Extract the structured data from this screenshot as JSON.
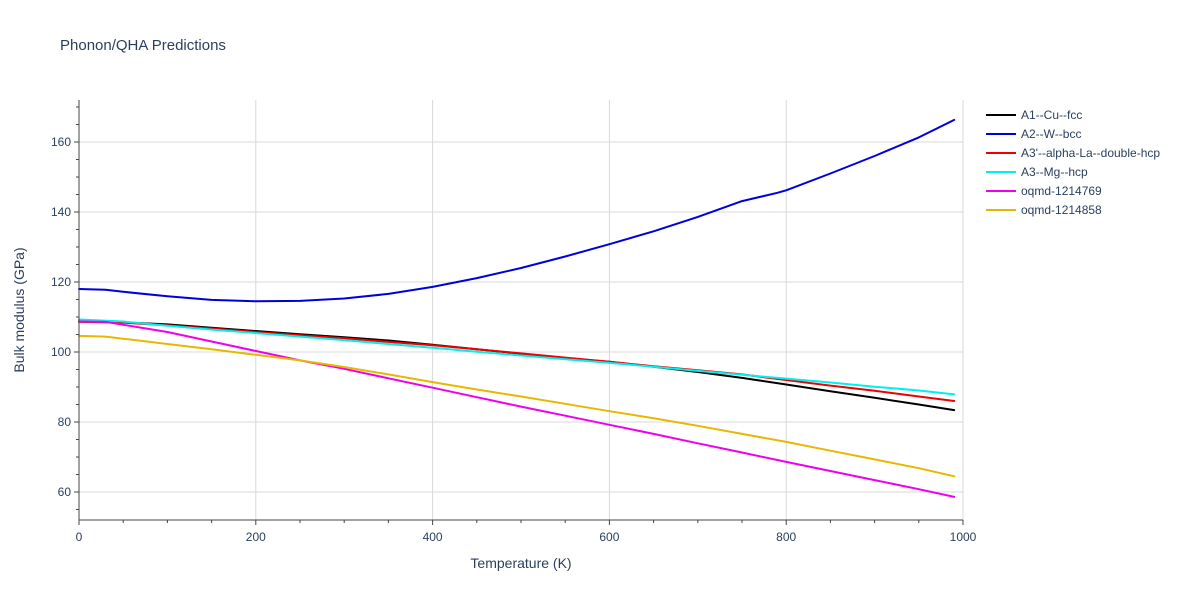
{
  "chart_data": {
    "type": "line",
    "title": "Phonon/QHA Predictions",
    "xlabel": "Temperature (K)",
    "ylabel": "Bulk modulus (GPa)",
    "xlim": [
      0,
      1000
    ],
    "ylim": [
      52,
      172
    ],
    "xticks": [
      0,
      200,
      400,
      600,
      800,
      1000
    ],
    "yticks": [
      60,
      80,
      100,
      120,
      140,
      160
    ],
    "grid": true,
    "legend_position": "right",
    "series": [
      {
        "name": "A1--Cu--fcc",
        "color": "#000000",
        "x": [
          0,
          50,
          100,
          150,
          200,
          250,
          300,
          350,
          400,
          450,
          500,
          550,
          600,
          650,
          700,
          750,
          800,
          850,
          900,
          950,
          990
        ],
        "y": [
          108.8,
          108.5,
          107.9,
          106.9,
          106.0,
          105.1,
          104.2,
          103.3,
          102.1,
          100.8,
          99.5,
          98.2,
          97.2,
          95.8,
          94.3,
          92.6,
          90.7,
          88.8,
          86.9,
          85.0,
          83.4
        ]
      },
      {
        "name": "A2--W--bcc",
        "color": "#0000dd",
        "x": [
          0,
          30,
          50,
          100,
          150,
          200,
          250,
          300,
          350,
          400,
          450,
          500,
          550,
          600,
          650,
          700,
          750,
          790,
          800,
          850,
          900,
          950,
          990
        ],
        "y": [
          118.0,
          117.8,
          117.2,
          115.9,
          114.9,
          114.5,
          114.6,
          115.3,
          116.6,
          118.6,
          121.1,
          124.0,
          127.3,
          130.8,
          134.5,
          138.6,
          143.1,
          145.5,
          146.2,
          151.0,
          156.0,
          161.3,
          166.3
        ]
      },
      {
        "name": "A3'--alpha-La--double-hcp",
        "color": "#ee0000",
        "x": [
          0,
          50,
          100,
          150,
          200,
          250,
          300,
          350,
          400,
          450,
          500,
          550,
          600,
          650,
          700,
          750,
          800,
          850,
          900,
          950,
          990
        ],
        "y": [
          108.6,
          108.4,
          107.6,
          106.7,
          105.7,
          104.8,
          103.9,
          102.9,
          101.9,
          100.8,
          99.6,
          98.4,
          97.2,
          95.9,
          94.8,
          93.6,
          92.0,
          90.4,
          88.9,
          87.3,
          86.0
        ]
      },
      {
        "name": "A3--Mg--hcp",
        "color": "#00f0f0",
        "x": [
          0,
          50,
          100,
          150,
          200,
          250,
          300,
          350,
          400,
          450,
          500,
          550,
          600,
          650,
          700,
          750,
          800,
          850,
          900,
          950,
          990
        ],
        "y": [
          109.3,
          108.7,
          107.5,
          106.4,
          105.4,
          104.4,
          103.4,
          102.3,
          101.2,
          100.1,
          99.0,
          97.9,
          96.9,
          95.8,
          94.6,
          93.5,
          92.4,
          91.3,
          90.1,
          89.0,
          87.9
        ]
      },
      {
        "name": "oqmd-1214769",
        "color": "#ee00ee",
        "x": [
          0,
          30,
          50,
          100,
          150,
          200,
          250,
          300,
          350,
          400,
          450,
          500,
          550,
          600,
          650,
          700,
          750,
          800,
          850,
          900,
          950,
          990
        ],
        "y": [
          108.7,
          108.6,
          107.8,
          105.7,
          103.0,
          100.3,
          97.6,
          95.2,
          92.5,
          89.8,
          87.1,
          84.4,
          81.8,
          79.2,
          76.6,
          73.9,
          71.3,
          68.6,
          66.0,
          63.4,
          60.8,
          58.6
        ]
      },
      {
        "name": "oqmd-1214858",
        "color": "#e6b800",
        "x": [
          0,
          30,
          50,
          100,
          150,
          200,
          250,
          300,
          350,
          400,
          450,
          500,
          550,
          600,
          650,
          700,
          750,
          800,
          850,
          900,
          950,
          990
        ],
        "y": [
          104.6,
          104.4,
          103.8,
          102.3,
          100.8,
          99.2,
          97.6,
          95.7,
          93.6,
          91.4,
          89.3,
          87.3,
          85.2,
          83.1,
          81.1,
          78.9,
          76.6,
          74.3,
          71.8,
          69.3,
          66.8,
          64.5
        ]
      }
    ]
  }
}
